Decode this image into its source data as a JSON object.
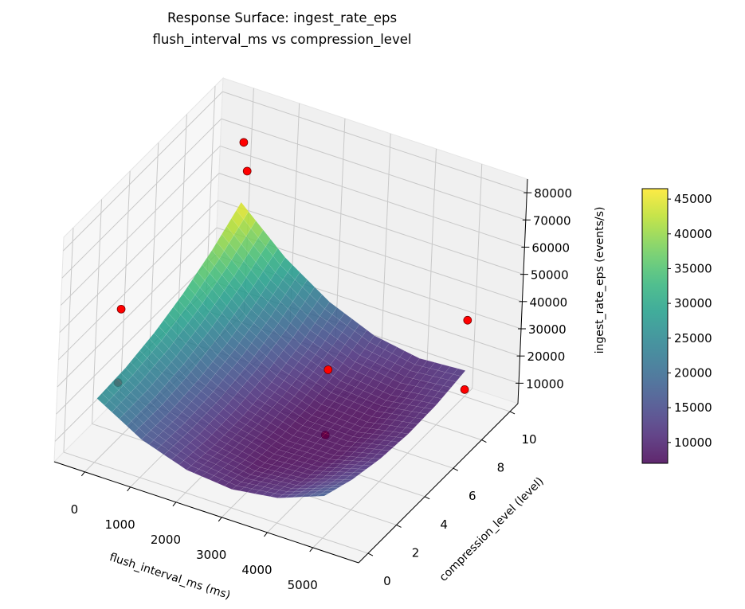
{
  "chart_data": {
    "type": "surface3d",
    "title": "Response Surface: ingest_rate_eps",
    "subtitle": "flush_interval_ms vs compression_level",
    "xlabel": "flush_interval_ms (ms)",
    "ylabel": "compression_level (level)",
    "zlabel": "ingest_rate_eps (events/s)",
    "xlim": [
      -670,
      6000
    ],
    "ylim": [
      -0.67,
      10.56
    ],
    "zlim": [
      2500,
      85000
    ],
    "x_ticks": [
      "0",
      "1000",
      "2000",
      "3000",
      "4000",
      "5000"
    ],
    "y_ticks": [
      "0",
      "2",
      "4",
      "6",
      "8",
      "10"
    ],
    "z_ticks": [
      "10000",
      "20000",
      "30000",
      "40000",
      "50000",
      "60000",
      "70000",
      "80000"
    ],
    "grid": true,
    "colormap": "viridis",
    "surface_alpha": 0.85,
    "surface": {
      "x": [
        0,
        1000,
        2000,
        3000,
        4000,
        5000
      ],
      "y": [
        0,
        2,
        4,
        6,
        8,
        10
      ],
      "z": [
        [
          26000,
          16468,
          10902,
          9302,
          11668,
          18000
        ],
        [
          26800,
          16228,
          9622,
          6982,
          8308,
          13600
        ],
        [
          29200,
          17588,
          9942,
          6262,
          6548,
          10800
        ],
        [
          33200,
          20548,
          11862,
          7142,
          6388,
          9600
        ],
        [
          38800,
          25108,
          15382,
          9622,
          7828,
          10000
        ],
        [
          46000,
          31268,
          20502,
          13702,
          10868,
          12000
        ]
      ]
    },
    "points": [
      {
        "x": 0,
        "y": 10,
        "z": 68000
      },
      {
        "x": 100,
        "y": 10,
        "z": 58000
      },
      {
        "x": 0,
        "y": 1.5,
        "z": 51000
      },
      {
        "x": 0,
        "y": 1.5,
        "z": 24000
      },
      {
        "x": 3500,
        "y": 5,
        "z": 30000
      },
      {
        "x": 3500,
        "y": 5,
        "z": 6000
      },
      {
        "x": 5000,
        "y": 10,
        "z": 30500
      },
      {
        "x": 5000,
        "y": 10,
        "z": 5000
      }
    ],
    "point_color": "#ff0000",
    "colorbar": {
      "range": [
        7000,
        46500
      ],
      "ticks": [
        "10000",
        "15000",
        "20000",
        "25000",
        "30000",
        "35000",
        "40000",
        "45000"
      ]
    }
  }
}
